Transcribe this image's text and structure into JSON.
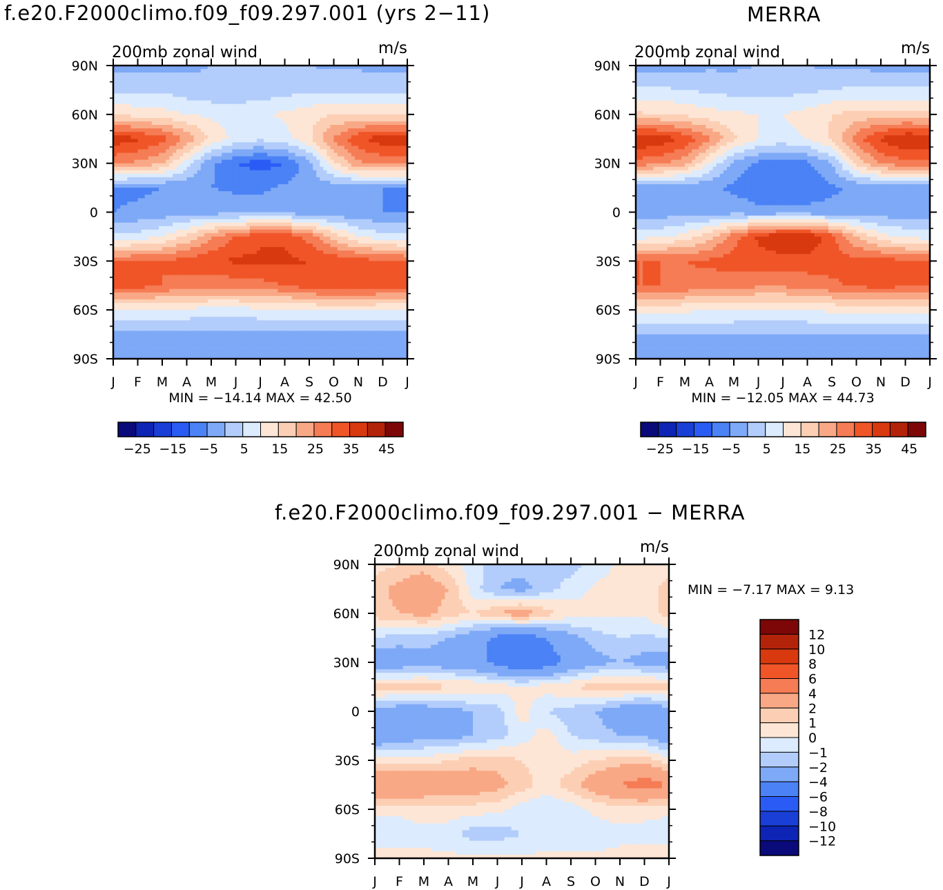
{
  "titles": {
    "left": "f.e20.F2000climo.f09_f09.297.001 (yrs 2−11)",
    "right": "MERRA",
    "bottom": "f.e20.F2000climo.f09_f09.297.001 − MERRA"
  },
  "colors": {
    "abs": [
      "#0a0a7a",
      "#0d24b4",
      "#1a3fd6",
      "#2a5cf5",
      "#4b82f5",
      "#7ea9f7",
      "#b2cdfb",
      "#dcebfd",
      "#fde6d6",
      "#fccfb4",
      "#f9a886",
      "#f57c54",
      "#f05528",
      "#d9390f",
      "#b3230a",
      "#7d0707"
    ],
    "diff": [
      "#0a0a7a",
      "#0d24b4",
      "#1a3fd6",
      "#2a5cf5",
      "#4b82f5",
      "#7ea9f7",
      "#b2cdfb",
      "#dcebfd",
      "#fde6d6",
      "#fccfb4",
      "#f9a886",
      "#f57c54",
      "#f05528",
      "#d9390f",
      "#b3230a",
      "#7d0707"
    ]
  },
  "chart_data": [
    {
      "id": "model",
      "type": "heatmap",
      "subtitle": "200mb zonal wind",
      "units": "m/s",
      "x": [
        "J",
        "F",
        "M",
        "A",
        "M",
        "J",
        "J",
        "A",
        "S",
        "O",
        "N",
        "D",
        "J"
      ],
      "y_ticks": [
        "90N",
        "60N",
        "30N",
        "0",
        "30S",
        "60S",
        "90S"
      ],
      "y": [
        90,
        60,
        30,
        0,
        -30,
        -60,
        -90
      ],
      "stats": "MIN = −14.14 MAX =  42.50",
      "min": -14.14,
      "max": 42.5,
      "legend_labels": [
        "−25",
        "−15",
        "−5",
        "5",
        "15",
        "25",
        "35",
        "45"
      ],
      "levels": [
        -30,
        -25,
        -20,
        -15,
        -10,
        -5,
        0,
        5,
        10,
        15,
        20,
        25,
        30,
        35,
        40,
        45,
        50
      ],
      "values": [
        [
          -2,
          -2,
          -2,
          -1,
          0,
          0,
          0,
          0,
          0,
          -1,
          -1,
          -2,
          -2
        ],
        [
          4,
          4,
          4,
          2,
          1,
          1,
          2,
          3,
          4,
          4,
          4,
          4,
          4
        ],
        [
          14,
          13,
          12,
          10,
          9,
          8,
          9,
          11,
          13,
          15,
          15,
          15,
          14
        ],
        [
          38,
          36,
          32,
          24,
          14,
          8,
          6,
          8,
          14,
          26,
          34,
          38,
          38
        ],
        [
          26,
          24,
          20,
          8,
          -4,
          -10,
          -12,
          -10,
          -2,
          14,
          24,
          26,
          26
        ],
        [
          -6,
          -6,
          -5,
          -4,
          -5,
          -6,
          -6,
          -4,
          -3,
          -3,
          -4,
          -5,
          -6
        ],
        [
          -5,
          -4,
          -3,
          -2,
          -2,
          -2,
          -2,
          -2,
          -3,
          -4,
          -4,
          -5,
          -5
        ],
        [
          6,
          7,
          10,
          16,
          24,
          30,
          34,
          34,
          28,
          18,
          10,
          7,
          6
        ],
        [
          30,
          30,
          30,
          32,
          34,
          36,
          36,
          36,
          35,
          34,
          32,
          31,
          30
        ],
        [
          32,
          32,
          30,
          28,
          27,
          27,
          28,
          30,
          33,
          34,
          34,
          33,
          32
        ],
        [
          10,
          10,
          9,
          9,
          8,
          8,
          9,
          9,
          10,
          10,
          10,
          10,
          10
        ],
        [
          -2,
          -2,
          -2,
          -2,
          -2,
          -2,
          -2,
          -2,
          -2,
          -2,
          -2,
          -2,
          -2
        ],
        [
          -3,
          -3,
          -3,
          -3,
          -3,
          -3,
          -3,
          -3,
          -3,
          -3,
          -3,
          -3,
          -3
        ]
      ]
    },
    {
      "id": "obs",
      "type": "heatmap",
      "subtitle": "200mb zonal wind",
      "units": "m/s",
      "x": [
        "J",
        "F",
        "M",
        "A",
        "M",
        "J",
        "J",
        "A",
        "S",
        "O",
        "N",
        "D",
        "J"
      ],
      "y_ticks": [
        "90N",
        "60N",
        "30N",
        "0",
        "30S",
        "60S",
        "90S"
      ],
      "y": [
        90,
        60,
        30,
        0,
        -30,
        -60,
        -90
      ],
      "stats": "MIN = −12.05 MAX =  44.73",
      "min": -12.05,
      "max": 44.73,
      "legend_labels": [
        "−25",
        "−15",
        "−5",
        "5",
        "15",
        "25",
        "35",
        "45"
      ],
      "levels": [
        -30,
        -25,
        -20,
        -15,
        -10,
        -5,
        0,
        5,
        10,
        15,
        20,
        25,
        30,
        35,
        40,
        45,
        50
      ],
      "values": [
        [
          -2,
          -2,
          -2,
          -1,
          -1,
          0,
          0,
          0,
          -1,
          -1,
          -2,
          -2,
          -2
        ],
        [
          6,
          6,
          5,
          4,
          3,
          3,
          3,
          4,
          5,
          6,
          6,
          6,
          6
        ],
        [
          16,
          15,
          14,
          12,
          11,
          10,
          10,
          12,
          15,
          17,
          17,
          17,
          16
        ],
        [
          40,
          38,
          34,
          26,
          16,
          10,
          8,
          10,
          16,
          28,
          36,
          40,
          40
        ],
        [
          28,
          26,
          22,
          10,
          -2,
          -6,
          -8,
          -6,
          0,
          16,
          26,
          28,
          28
        ],
        [
          -4,
          -4,
          -4,
          -4,
          -6,
          -9,
          -10,
          -9,
          -6,
          -4,
          -4,
          -4,
          -4
        ],
        [
          -3,
          -3,
          -2,
          -2,
          -2,
          -3,
          -3,
          -3,
          -3,
          -3,
          -3,
          -3,
          -3
        ],
        [
          8,
          9,
          12,
          18,
          28,
          36,
          40,
          40,
          32,
          20,
          12,
          9,
          8
        ],
        [
          30,
          30,
          30,
          31,
          32,
          33,
          33,
          33,
          32,
          32,
          32,
          31,
          30
        ],
        [
          30,
          30,
          29,
          28,
          27,
          26,
          26,
          27,
          29,
          31,
          32,
          31,
          30
        ],
        [
          12,
          12,
          11,
          10,
          10,
          9,
          9,
          10,
          11,
          12,
          12,
          12,
          12
        ],
        [
          0,
          0,
          0,
          0,
          0,
          0,
          0,
          0,
          0,
          0,
          0,
          0,
          0
        ],
        [
          -3,
          -3,
          -3,
          -3,
          -3,
          -3,
          -3,
          -3,
          -3,
          -3,
          -3,
          -3,
          -3
        ]
      ]
    },
    {
      "id": "diff",
      "type": "heatmap",
      "subtitle": "200mb zonal wind",
      "units": "m/s",
      "x": [
        "J",
        "F",
        "M",
        "A",
        "M",
        "J",
        "J",
        "A",
        "S",
        "O",
        "N",
        "D",
        "J"
      ],
      "y_ticks": [
        "90N",
        "60N",
        "30N",
        "0",
        "30S",
        "60S",
        "90S"
      ],
      "y": [
        90,
        60,
        30,
        0,
        -30,
        -60,
        -90
      ],
      "stats": "MIN =    −7.17 MAX =     9.13",
      "min": -7.17,
      "max": 9.13,
      "legend_labels": [
        "12",
        "10",
        "8",
        "6",
        "4",
        "2",
        "1",
        "0",
        "−1",
        "−2",
        "−4",
        "−6",
        "−8",
        "−10",
        "−12"
      ],
      "levels": [
        -14,
        -12,
        -10,
        -8,
        -6,
        -4,
        -2,
        -1,
        0,
        1,
        2,
        4,
        6,
        8,
        10,
        12,
        14
      ],
      "values": [
        [
          0.5,
          1,
          1.5,
          0.5,
          -0.5,
          -1.5,
          -1.5,
          -1,
          -1.5,
          -0.5,
          0.2,
          0.4,
          0.5
        ],
        [
          1.5,
          2.5,
          3,
          2,
          -0.5,
          -2,
          -2.5,
          -1.5,
          -0.5,
          0.2,
          0.3,
          0.5,
          1.5
        ],
        [
          1.5,
          2,
          2.5,
          1.5,
          1,
          2,
          3,
          1.5,
          0.5,
          0.2,
          0.2,
          0.2,
          1.5
        ],
        [
          -1,
          -1.5,
          -1.5,
          -2,
          -3,
          -4.5,
          -5,
          -4,
          -2.5,
          -1.5,
          -1,
          -1.2,
          -1
        ],
        [
          -3,
          -3,
          -2.5,
          -3,
          -3.5,
          -4.5,
          -6,
          -5,
          -3.5,
          -2.5,
          -2,
          -2.5,
          -3
        ],
        [
          1.5,
          1.5,
          1.5,
          1.2,
          1,
          0.5,
          0.2,
          0.5,
          1,
          1.5,
          1.8,
          1.5,
          1.5
        ],
        [
          -2.5,
          -3,
          -3,
          -2.5,
          -2,
          -1.5,
          0.5,
          -1,
          -1.5,
          -2,
          -3,
          -4,
          -2.5
        ],
        [
          -3.5,
          -3,
          -2.5,
          -2.5,
          -2,
          -1.5,
          -0.5,
          0.5,
          -1,
          -1.5,
          -2,
          -2,
          -3.5
        ],
        [
          0.5,
          0.5,
          0.5,
          1,
          1.5,
          1.5,
          1,
          0.5,
          0.5,
          1,
          1.5,
          1.5,
          0.5
        ],
        [
          4,
          4,
          3.5,
          3,
          3,
          2.5,
          1.5,
          0.5,
          1.5,
          3,
          4,
          5,
          4
        ],
        [
          0.2,
          0.2,
          0.5,
          0.5,
          0.5,
          0.3,
          -0.5,
          -1,
          -0.5,
          0.2,
          0.5,
          0.5,
          0.2
        ],
        [
          -0.5,
          -0.5,
          -0.3,
          -0.5,
          -1.5,
          -1.5,
          -1,
          -0.5,
          -0.5,
          -0.5,
          -0.3,
          -0.5,
          -0.5
        ],
        [
          0.5,
          0.3,
          0.2,
          0.2,
          0.2,
          0.2,
          0.2,
          0.2,
          0.2,
          0.2,
          0.3,
          0.5,
          0.5
        ]
      ]
    }
  ]
}
